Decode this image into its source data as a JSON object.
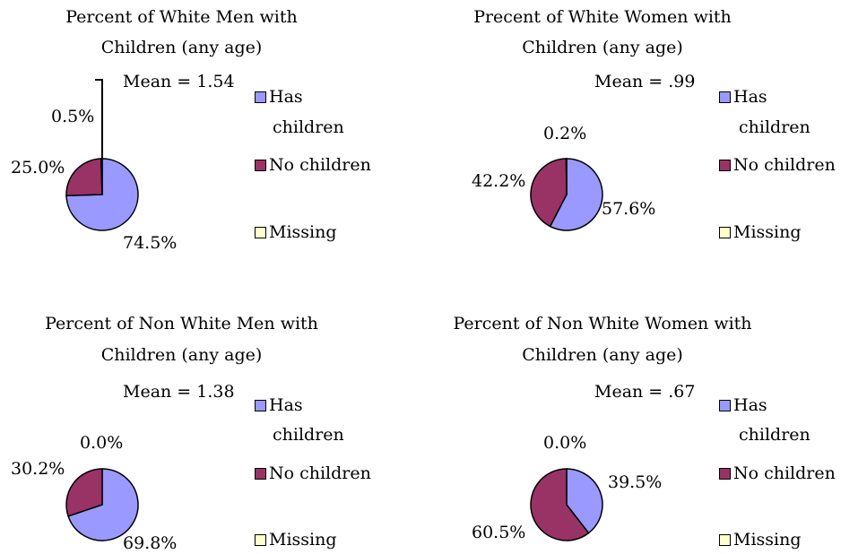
{
  "colors": {
    "has_children": "#9999ff",
    "no_children": "#993366",
    "missing": "#ffffcc",
    "outline": "#000000"
  },
  "legend_labels": [
    "Has children",
    "No children",
    "Missing"
  ],
  "chart_data": [
    {
      "type": "pie",
      "title_line1": "Percent of White Men with",
      "title_line2": "Children (any age)",
      "mean_label": "Mean = 1.54",
      "categories": [
        "Has children",
        "No children",
        "Missing"
      ],
      "values": [
        74.5,
        25.0,
        0.5
      ],
      "data_labels": [
        "74.5%",
        "25.0%",
        "0.5%"
      ],
      "legend_placement": "right"
    },
    {
      "type": "pie",
      "title_line1": "Precent of White Women with",
      "title_line2": "Children (any age)",
      "mean_label": "Mean = .99",
      "categories": [
        "Has children",
        "No children",
        "Missing"
      ],
      "values": [
        57.6,
        42.2,
        0.2
      ],
      "data_labels": [
        "57.6%",
        "42.2%",
        "0.2%"
      ],
      "legend_placement": "right"
    },
    {
      "type": "pie",
      "title_line1": "Percent of Non White Men with",
      "title_line2": "Children (any age)",
      "mean_label": "Mean = 1.38",
      "categories": [
        "Has children",
        "No children",
        "Missing"
      ],
      "values": [
        69.8,
        30.2,
        0.0
      ],
      "data_labels": [
        "69.8%",
        "30.2%",
        "0.0%"
      ],
      "legend_placement": "right"
    },
    {
      "type": "pie",
      "title_line1": "Percent of Non White Women with",
      "title_line2": "Children (any age)",
      "mean_label": "Mean = .67",
      "categories": [
        "Has children",
        "No children",
        "Missing"
      ],
      "values": [
        39.5,
        60.5,
        0.0
      ],
      "data_labels": [
        "39.5%",
        "60.5%",
        "0.0%"
      ],
      "legend_placement": "right"
    }
  ]
}
